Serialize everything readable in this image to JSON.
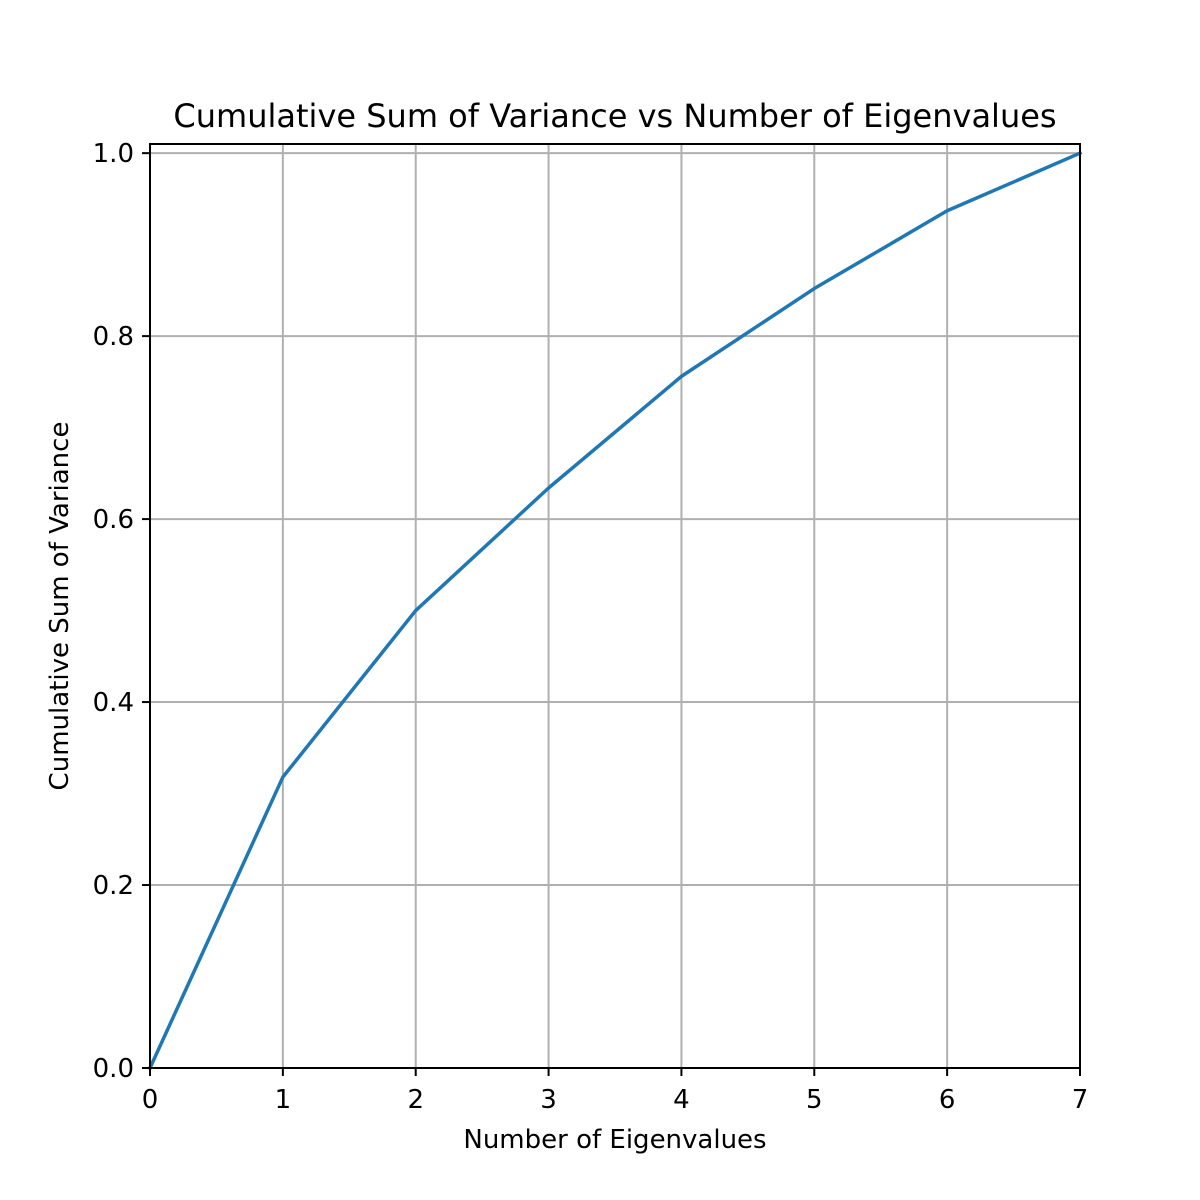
{
  "chart_data": {
    "type": "line",
    "title": "Cumulative Sum of Variance vs Number of Eigenvalues",
    "xlabel": "Number of Eigenvalues",
    "ylabel": "Cumulative Sum of Variance",
    "xlim": [
      0,
      7
    ],
    "ylim": [
      0,
      1.01
    ],
    "x_ticks": [
      "0",
      "1",
      "2",
      "3",
      "4",
      "5",
      "6",
      "7"
    ],
    "y_ticks": [
      "0.0",
      "0.2",
      "0.4",
      "0.6",
      "0.8",
      "1.0"
    ],
    "grid": true,
    "series": [
      {
        "color": "#1f77b4",
        "x": [
          0,
          1,
          2,
          3,
          4,
          5,
          6,
          7
        ],
        "y": [
          0.0,
          0.318,
          0.5,
          0.634,
          0.756,
          0.852,
          0.937,
          1.0
        ]
      }
    ]
  }
}
